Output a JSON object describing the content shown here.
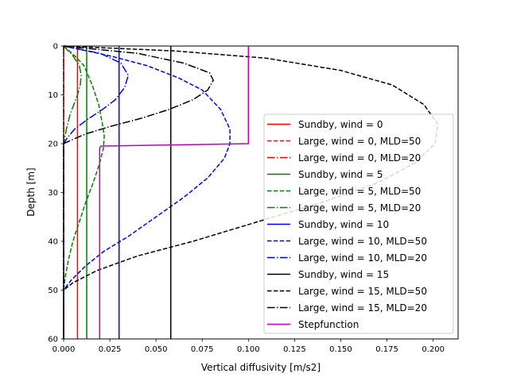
{
  "chart_data": {
    "type": "line",
    "title": "",
    "xlabel": "Vertical diffusivity [m/s2]",
    "ylabel": "Depth [m]",
    "xlim": [
      0,
      0.2135
    ],
    "ylim": [
      60,
      0
    ],
    "y_inverted": true,
    "grid": false,
    "legend_position": "lower-right",
    "x_ticks": [
      {
        "value": 0.0,
        "label": "0.000"
      },
      {
        "value": 0.025,
        "label": "0.025"
      },
      {
        "value": 0.05,
        "label": "0.050"
      },
      {
        "value": 0.075,
        "label": "0.075"
      },
      {
        "value": 0.1,
        "label": "0.100"
      },
      {
        "value": 0.125,
        "label": "0.125"
      },
      {
        "value": 0.15,
        "label": "0.150"
      },
      {
        "value": 0.175,
        "label": "0.175"
      },
      {
        "value": 0.2,
        "label": "0.200"
      }
    ],
    "y_ticks": [
      {
        "value": 0,
        "label": "0"
      },
      {
        "value": 10,
        "label": "10"
      },
      {
        "value": 20,
        "label": "20"
      },
      {
        "value": 30,
        "label": "30"
      },
      {
        "value": 40,
        "label": "40"
      },
      {
        "value": 50,
        "label": "50"
      },
      {
        "value": 60,
        "label": "60"
      }
    ],
    "series": [
      {
        "name": "Sundby, wind = 0",
        "color": "#ff0000",
        "dash": "solid",
        "points": [
          [
            0.0075,
            0
          ],
          [
            0.0075,
            60
          ]
        ]
      },
      {
        "name": "Large, wind = 0, MLD=50",
        "color": "#ff0000",
        "dash": "dashed",
        "points": [
          [
            0.0,
            0
          ],
          [
            0.0,
            60
          ]
        ]
      },
      {
        "name": "Large, wind = 0, MLD=20",
        "color": "#ff0000",
        "dash": "dashdot",
        "points": [
          [
            0.0,
            0
          ],
          [
            0.0,
            60
          ]
        ]
      },
      {
        "name": "Sundby, wind = 5",
        "color": "#008000",
        "dash": "solid",
        "points": [
          [
            0.0125,
            0
          ],
          [
            0.0125,
            60
          ]
        ]
      },
      {
        "name": "Large, wind = 5, MLD=50",
        "color": "#008000",
        "dash": "dashed",
        "points": [
          [
            0.0,
            0
          ],
          [
            0.006,
            2
          ],
          [
            0.011,
            4
          ],
          [
            0.0155,
            8
          ],
          [
            0.019,
            12
          ],
          [
            0.021,
            16
          ],
          [
            0.022,
            18.5
          ],
          [
            0.0215,
            21
          ],
          [
            0.0195,
            24
          ],
          [
            0.016,
            28
          ],
          [
            0.012,
            32
          ],
          [
            0.0085,
            36
          ],
          [
            0.005,
            40
          ],
          [
            0.0025,
            44
          ],
          [
            0.001,
            47
          ],
          [
            0.0,
            50
          ],
          [
            0.0,
            60
          ]
        ]
      },
      {
        "name": "Large, wind = 5, MLD=20",
        "color": "#008000",
        "dash": "dashdot",
        "points": [
          [
            0.0,
            0
          ],
          [
            0.005,
            2
          ],
          [
            0.0085,
            4
          ],
          [
            0.0095,
            6
          ],
          [
            0.009,
            8
          ],
          [
            0.0075,
            10
          ],
          [
            0.0055,
            12
          ],
          [
            0.0035,
            14
          ],
          [
            0.0015,
            17
          ],
          [
            0.0,
            20
          ],
          [
            0.0,
            60
          ]
        ]
      },
      {
        "name": "Sundby, wind = 10",
        "color": "#0000ff",
        "dash": "solid",
        "points": [
          [
            0.03,
            0
          ],
          [
            0.03,
            60
          ]
        ]
      },
      {
        "name": "Large, wind = 10, MLD=50",
        "color": "#0000ff",
        "dash": "dashed",
        "points": [
          [
            0.0,
            0
          ],
          [
            0.025,
            2
          ],
          [
            0.045,
            4
          ],
          [
            0.062,
            6.5
          ],
          [
            0.075,
            9
          ],
          [
            0.085,
            13
          ],
          [
            0.09,
            17
          ],
          [
            0.09,
            20
          ],
          [
            0.087,
            23
          ],
          [
            0.078,
            27
          ],
          [
            0.065,
            31
          ],
          [
            0.05,
            35
          ],
          [
            0.035,
            39
          ],
          [
            0.022,
            42
          ],
          [
            0.012,
            45
          ],
          [
            0.004,
            48
          ],
          [
            0.0,
            50
          ],
          [
            0.0,
            60
          ]
        ]
      },
      {
        "name": "Large, wind = 10, MLD=20",
        "color": "#0000ff",
        "dash": "dashdot",
        "points": [
          [
            0.0,
            0
          ],
          [
            0.02,
            1.5
          ],
          [
            0.031,
            3.5
          ],
          [
            0.035,
            6
          ],
          [
            0.033,
            8.5
          ],
          [
            0.028,
            11
          ],
          [
            0.021,
            13
          ],
          [
            0.013,
            15
          ],
          [
            0.006,
            17
          ],
          [
            0.002,
            18.8
          ],
          [
            0.0,
            20
          ],
          [
            0.0,
            60
          ]
        ]
      },
      {
        "name": "Sundby, wind = 15",
        "color": "#000000",
        "dash": "solid",
        "points": [
          [
            0.058,
            0
          ],
          [
            0.058,
            60
          ]
        ]
      },
      {
        "name": "Large, wind = 15, MLD=50",
        "color": "#000000",
        "dash": "dashed",
        "points": [
          [
            0.0,
            0
          ],
          [
            0.06,
            1
          ],
          [
            0.11,
            2.5
          ],
          [
            0.15,
            5
          ],
          [
            0.178,
            8
          ],
          [
            0.195,
            12
          ],
          [
            0.2025,
            16
          ],
          [
            0.201,
            20
          ],
          [
            0.19,
            24
          ],
          [
            0.17,
            28
          ],
          [
            0.14,
            32
          ],
          [
            0.105,
            36
          ],
          [
            0.07,
            40
          ],
          [
            0.04,
            43
          ],
          [
            0.018,
            46
          ],
          [
            0.005,
            48.5
          ],
          [
            0.0,
            50
          ],
          [
            0.0,
            60
          ]
        ]
      },
      {
        "name": "Large, wind = 15, MLD=20",
        "color": "#000000",
        "dash": "dashdot",
        "points": [
          [
            0.0,
            0
          ],
          [
            0.04,
            1.5
          ],
          [
            0.065,
            3.5
          ],
          [
            0.079,
            5.5
          ],
          [
            0.081,
            7
          ],
          [
            0.078,
            9
          ],
          [
            0.07,
            11
          ],
          [
            0.057,
            13
          ],
          [
            0.042,
            14.8
          ],
          [
            0.025,
            16.5
          ],
          [
            0.012,
            18
          ],
          [
            0.004,
            19.3
          ],
          [
            0.0,
            20
          ],
          [
            0.0,
            60
          ]
        ]
      },
      {
        "name": "Stepfunction",
        "color": "#bf00bf",
        "dash": "solid",
        "points": [
          [
            0.1,
            0
          ],
          [
            0.1,
            20
          ],
          [
            0.02,
            20.5
          ],
          [
            0.0195,
            21
          ],
          [
            0.0195,
            60
          ]
        ]
      }
    ]
  }
}
